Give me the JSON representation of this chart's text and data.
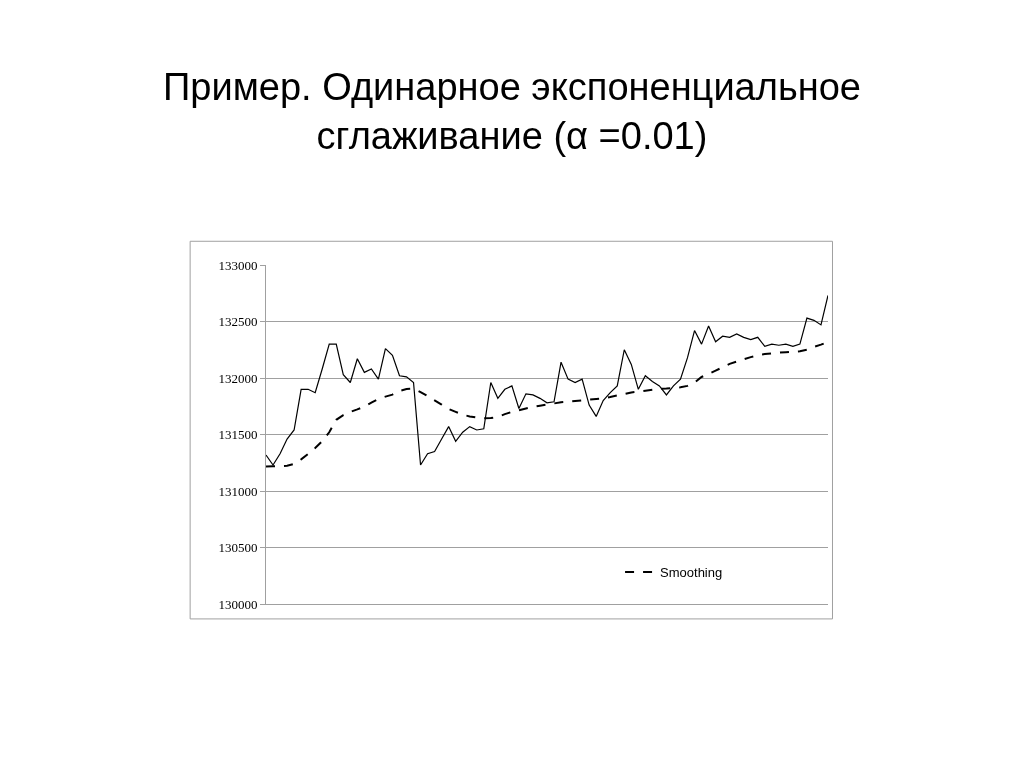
{
  "chart_data": {
    "type": "line",
    "title": "Пример. Одинарное экспоненциальное сглаживание (α =0.01)",
    "categories": [
      null,
      null,
      null,
      null,
      null,
      null,
      null,
      null,
      null,
      null,
      null,
      null,
      null,
      null,
      null,
      null,
      null,
      null,
      null,
      null,
      null,
      null,
      null,
      null,
      null,
      null,
      null,
      null,
      null,
      null,
      null,
      null,
      null,
      null,
      null,
      null,
      null,
      null,
      null,
      null,
      null,
      null,
      null,
      null,
      null,
      null,
      null,
      null,
      null,
      null,
      null,
      null,
      null,
      null,
      null,
      null,
      null,
      null,
      null,
      null,
      null,
      null,
      null,
      null,
      null,
      null,
      null,
      null,
      null,
      null,
      null,
      null,
      null,
      null,
      null,
      null,
      null,
      null,
      null,
      null,
      null
    ],
    "series": [
      {
        "color": "#000000",
        "line_style": "solid",
        "values": [
          131318,
          131230,
          131330,
          131460,
          131540,
          131900,
          131900,
          131870,
          132080,
          132300,
          132300,
          132030,
          131960,
          132170,
          132050,
          132080,
          131990,
          132260,
          132200,
          132020,
          132010,
          131960,
          131230,
          131330,
          131350,
          131460,
          131570,
          131440,
          131520,
          131570,
          131540,
          131550,
          131960,
          131820,
          131900,
          131930,
          131730,
          131860,
          131850,
          131820,
          131780,
          131790,
          132140,
          131990,
          131960,
          131990,
          131760,
          131660,
          131800,
          131870,
          131930,
          132250,
          132120,
          131900,
          132020,
          131970,
          131930,
          131850,
          131930,
          131990,
          132180,
          132420,
          132300,
          132460,
          132320,
          132370,
          132360,
          132390,
          132360,
          132340,
          132360,
          132280,
          132300,
          132290,
          132300,
          132280,
          132300,
          132530,
          132510,
          132470,
          132730
        ]
      },
      {
        "name": "Smoothing",
        "color": "#000000",
        "line_style": "dashed",
        "values": [
          131216,
          131218,
          131220,
          131224,
          131240,
          131280,
          131328,
          131380,
          131440,
          131520,
          131630,
          131672,
          131700,
          131722,
          131748,
          131783,
          131815,
          131835,
          131853,
          131885,
          131902,
          131906,
          131875,
          131840,
          131802,
          131765,
          131726,
          131700,
          131675,
          131660,
          131650,
          131644,
          131645,
          131655,
          131680,
          131700,
          131715,
          131730,
          131744,
          131755,
          131765,
          131775,
          131785,
          131790,
          131796,
          131802,
          131808,
          131815,
          131820,
          131832,
          131846,
          131858,
          131872,
          131880,
          131888,
          131896,
          131903,
          131906,
          131912,
          131918,
          131930,
          131960,
          132009,
          132035,
          132065,
          132095,
          132125,
          132145,
          132165,
          132185,
          132200,
          132212,
          132218,
          132224,
          132228,
          132232,
          132236,
          132250,
          132275,
          132295,
          132318
        ]
      }
    ],
    "ylim": [
      130000,
      133000
    ],
    "yticks": [
      130000,
      130500,
      131000,
      131500,
      132000,
      132500,
      133000
    ],
    "grid": "y",
    "legend": "bottom right",
    "tick_labels": "y",
    "marker": "none"
  }
}
